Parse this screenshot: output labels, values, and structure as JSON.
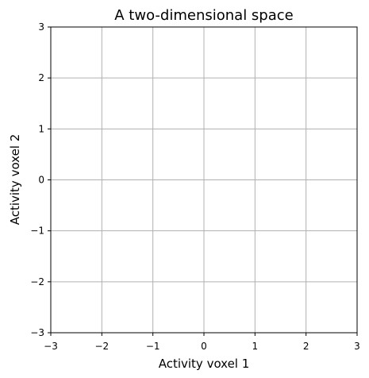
{
  "chart_data": {
    "type": "scatter",
    "title": "A two-dimensional space",
    "xlabel": "Activity voxel 1",
    "ylabel": "Activity voxel 2",
    "xlim": [
      -3,
      3
    ],
    "ylim": [
      -3,
      3
    ],
    "x_ticks": [
      -3,
      -2,
      -1,
      0,
      1,
      2,
      3
    ],
    "y_ticks": [
      -3,
      -2,
      -1,
      0,
      1,
      2,
      3
    ],
    "x_tick_labels": [
      "−3",
      "−2",
      "−1",
      "0",
      "1",
      "2",
      "3"
    ],
    "y_tick_labels": [
      "−3",
      "−2",
      "−1",
      "0",
      "1",
      "2",
      "3"
    ],
    "grid": true,
    "series": [],
    "colors": {
      "grid": "#b0b0b0",
      "axes": "#000000",
      "background": "#ffffff"
    }
  }
}
